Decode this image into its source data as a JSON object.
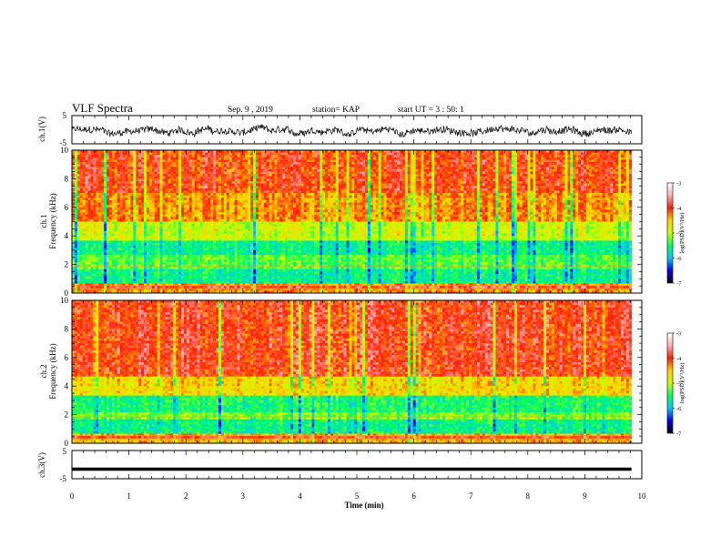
{
  "header": {
    "title": "VLF Spectra",
    "date": "Sep. 9 , 2019",
    "station": "station= KAP",
    "start_time": "start UT = 3 : 50: 1"
  },
  "colors": {
    "colormap": [
      "#000000",
      "#0000ff",
      "#00c8ff",
      "#00ff60",
      "#c8ff00",
      "#ffd200",
      "#ff2000",
      "#ffb0b0",
      "#ffffff"
    ],
    "trace": "#000000"
  },
  "chart_data": [
    {
      "type": "line",
      "panel": "ch1-waveform",
      "ylabel": "ch.1(V)",
      "ylim": [
        -5,
        5
      ],
      "yticks": [
        "5",
        "-5"
      ],
      "xlim": [
        0,
        10
      ],
      "description_level": "noisy waveform oscillating around -0.5 V",
      "amplitude_range": [
        -2.5,
        2.0
      ]
    },
    {
      "type": "heatmap",
      "panel": "ch1-spectrogram",
      "ylabel": "ch.1 Frequency (kHz)",
      "ylabel_line1": "ch.1",
      "ylabel_line2": "Frequency (kHz)",
      "ylim": [
        0,
        10
      ],
      "yticks": [
        "0",
        "2",
        "4",
        "6",
        "8",
        "10"
      ],
      "x_data_end": 9.82,
      "colorbar": {
        "label": "log(PSD)(V²/Hz)",
        "range": [
          -7,
          -3
        ],
        "ticks": [
          "-3",
          "-4",
          "-5",
          "-6",
          "-7"
        ]
      },
      "band_levels": [
        {
          "f_from": 0,
          "f_to": 0.7,
          "level": -4.3
        },
        {
          "f_from": 0.7,
          "f_to": 1.6,
          "level": -5.6
        },
        {
          "f_from": 1.6,
          "f_to": 2.6,
          "level": -5.3
        },
        {
          "f_from": 2.6,
          "f_to": 3.6,
          "level": -5.6
        },
        {
          "f_from": 3.6,
          "f_to": 5.0,
          "level": -4.9
        },
        {
          "f_from": 5.0,
          "f_to": 7.0,
          "level": -4.3
        },
        {
          "f_from": 7.0,
          "f_to": 10.0,
          "level": -4.0
        }
      ]
    },
    {
      "type": "heatmap",
      "panel": "ch2-spectrogram",
      "ylabel": "ch.2 Frequency (kHz)",
      "ylabel_line1": "ch.2",
      "ylabel_line2": "Frequency (kHz)",
      "ylim": [
        0,
        10
      ],
      "yticks": [
        "0",
        "2",
        "4",
        "6",
        "8",
        "10"
      ],
      "x_data_end": 9.82,
      "colorbar": {
        "label": "log(PSD)(V²/Hz)",
        "range": [
          -7,
          -3
        ],
        "ticks": [
          "-3",
          "-4",
          "-5",
          "-6",
          "-7"
        ]
      },
      "band_levels": [
        {
          "f_from": 0,
          "f_to": 0.7,
          "level": -4.4
        },
        {
          "f_from": 0.7,
          "f_to": 1.6,
          "level": -5.6
        },
        {
          "f_from": 1.6,
          "f_to": 2.2,
          "level": -5.2
        },
        {
          "f_from": 2.2,
          "f_to": 3.4,
          "level": -5.5
        },
        {
          "f_from": 3.4,
          "f_to": 4.6,
          "level": -4.6
        },
        {
          "f_from": 4.6,
          "f_to": 10.0,
          "level": -3.95
        }
      ]
    },
    {
      "type": "line",
      "panel": "ch3-waveform",
      "ylabel": "ch.3(V)",
      "ylim": [
        -5,
        5
      ],
      "yticks": [
        "5",
        "-5"
      ],
      "xlim": [
        0,
        10
      ],
      "level": -1.6
    }
  ],
  "xaxis": {
    "label": "Time (min)",
    "lim": [
      0,
      10
    ],
    "ticks": [
      "0",
      "1",
      "2",
      "3",
      "4",
      "5",
      "6",
      "7",
      "8",
      "9",
      "10"
    ]
  }
}
